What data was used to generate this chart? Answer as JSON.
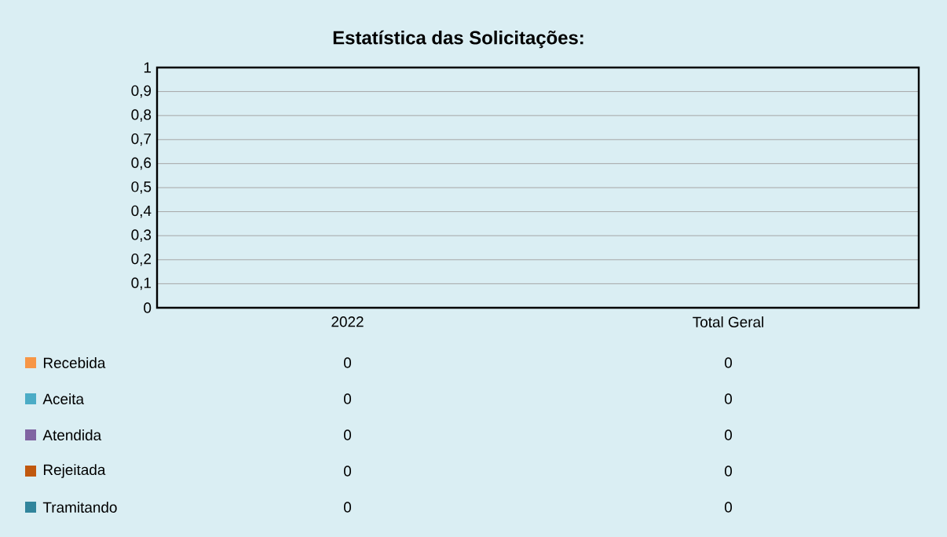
{
  "chart_data": {
    "type": "bar",
    "title": "Estatística das Solicitações:",
    "categories": [
      "2022",
      "Total Geral"
    ],
    "series": [
      {
        "name": "Recebida",
        "color": "#f79646",
        "values": [
          0,
          0
        ]
      },
      {
        "name": "Aceita",
        "color": "#4bacc6",
        "values": [
          0,
          0
        ]
      },
      {
        "name": "Atendida",
        "color": "#8064a2",
        "values": [
          0,
          0
        ]
      },
      {
        "name": "Rejeitada",
        "color": "#c0580e",
        "values": [
          0,
          0
        ]
      },
      {
        "name": "Tramitando",
        "color": "#31859c",
        "values": [
          0,
          0
        ]
      }
    ],
    "ylim": [
      0,
      1
    ],
    "yticks": [
      0,
      {
        "value": 0.1,
        "label": "0,1"
      },
      {
        "value": 0.2,
        "label": "0,2"
      },
      {
        "value": 0.3,
        "label": "0,3"
      },
      {
        "value": 0.4,
        "label": "0,4"
      },
      {
        "value": 0.5,
        "label": "0,5"
      },
      {
        "value": 0.6,
        "label": "0,6"
      },
      {
        "value": 0.7,
        "label": "0,7"
      },
      {
        "value": 0.8,
        "label": "0,8"
      },
      {
        "value": 0.9,
        "label": "0,9"
      },
      1
    ],
    "grid": "y",
    "legend": "bottom",
    "data_labels": true
  }
}
